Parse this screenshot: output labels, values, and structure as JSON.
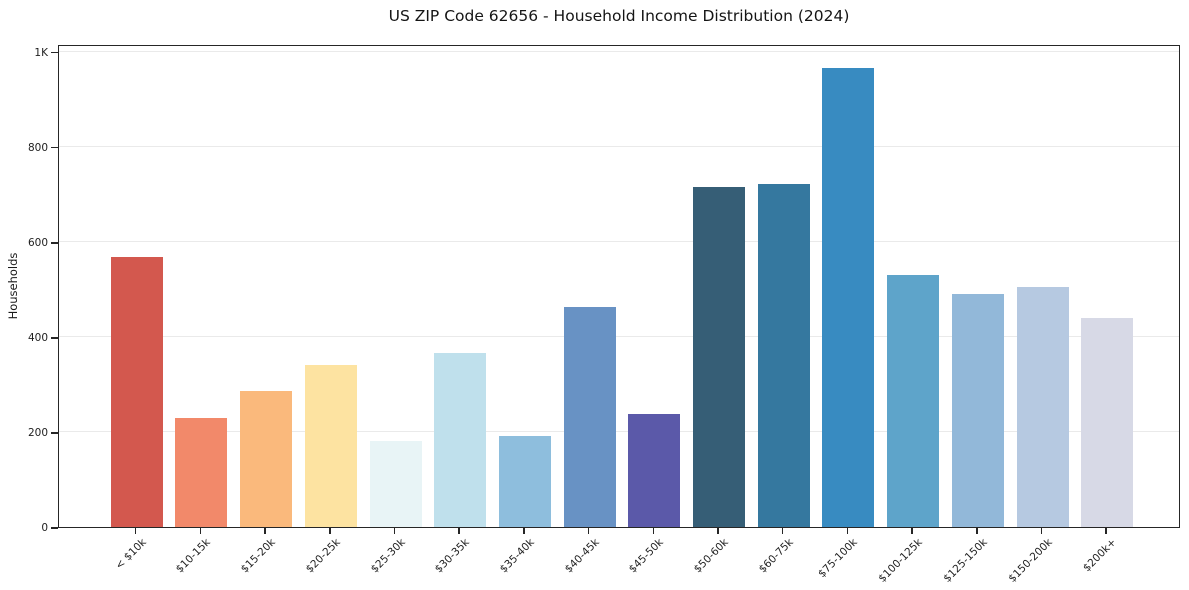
{
  "chart_data": {
    "type": "bar",
    "title": "US ZIP Code 62656 - Household Income Distribution (2024)",
    "xlabel": "",
    "ylabel": "Households",
    "categories": [
      "< $10k",
      "$10-15k",
      "$15-20k",
      "$20-25k",
      "$25-30k",
      "$30-35k",
      "$35-40k",
      "$40-45k",
      "$45-50k",
      "$50-60k",
      "$60-75k",
      "$75-100k",
      "$100-125k",
      "$125-150k",
      "$150-200k",
      "$200k+"
    ],
    "values": [
      568,
      230,
      287,
      340,
      181,
      367,
      192,
      463,
      237,
      715,
      722,
      965,
      530,
      490,
      505,
      440
    ],
    "bar_colors": [
      "#d3584e",
      "#f2896a",
      "#fab97c",
      "#fde3a1",
      "#e8f4f6",
      "#bfe0ec",
      "#8ebedd",
      "#6892c4",
      "#5b59a9",
      "#365e76",
      "#35789f",
      "#388bc1",
      "#5ea4ca",
      "#92b8d9",
      "#b6c9e1",
      "#d7d9e6"
    ],
    "ylim": [
      0,
      1016
    ],
    "yticks": [
      {
        "value": 0,
        "label": "0"
      },
      {
        "value": 200,
        "label": "200"
      },
      {
        "value": 400,
        "label": "400"
      },
      {
        "value": 600,
        "label": "600"
      },
      {
        "value": 800,
        "label": "800"
      },
      {
        "value": 1000,
        "label": "1K"
      }
    ],
    "gridline_values": [
      200,
      400,
      600,
      800,
      1000
    ],
    "grid": "horizontal",
    "legend": "none",
    "xtick_rotation_deg": 45
  },
  "colors": {
    "background": "#ffffff",
    "grid": "#eaeaea",
    "spine": "#262626",
    "tick_label": "#1f1f1f",
    "title_text": "#151515"
  }
}
